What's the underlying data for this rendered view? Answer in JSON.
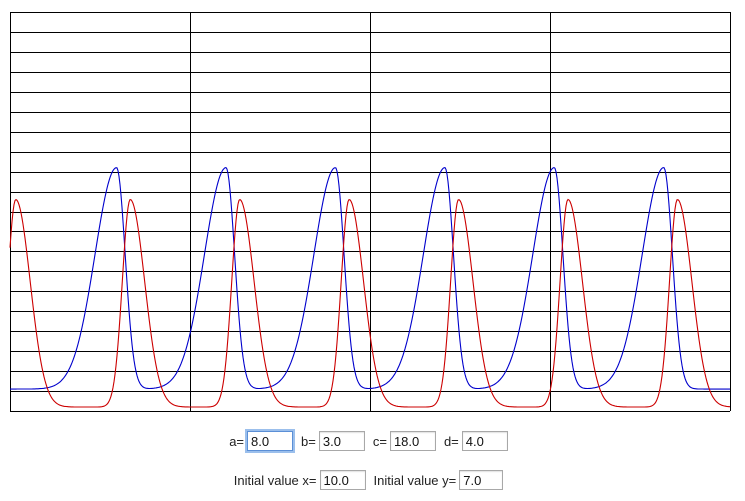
{
  "chart_data": {
    "type": "line",
    "title": "",
    "xlabel": "",
    "ylabel": "",
    "grid": true,
    "grid_vertical_divisions": 4,
    "grid_horizontal_divisions": 20,
    "series": [
      {
        "color": "#0000cc",
        "description_peaks_x_fraction": [
          0.148,
          0.3,
          0.452,
          0.604,
          0.756,
          0.908
        ],
        "peak_level": 0.61,
        "trough_level": 0.055
      },
      {
        "color": "#cc0000",
        "description_peaks_x_fraction": [
          0.008,
          0.167,
          0.319,
          0.471,
          0.623,
          0.775,
          0.927
        ],
        "peak_level": 0.53,
        "trough_level": 0.01
      }
    ]
  },
  "params": {
    "a_label": "a=",
    "a_value": "8.0",
    "b_label": "b=",
    "b_value": "3.0",
    "c_label": "c=",
    "c_value": "18.0",
    "d_label": "d=",
    "d_value": "4.0"
  },
  "initial": {
    "x_label": "Initial value x=",
    "x_value": "10.0",
    "y_label": "Initial value y=",
    "y_value": "7.0"
  },
  "colors": {
    "grid": "#000000",
    "prey": "#0000cc",
    "predator": "#cc0000"
  }
}
